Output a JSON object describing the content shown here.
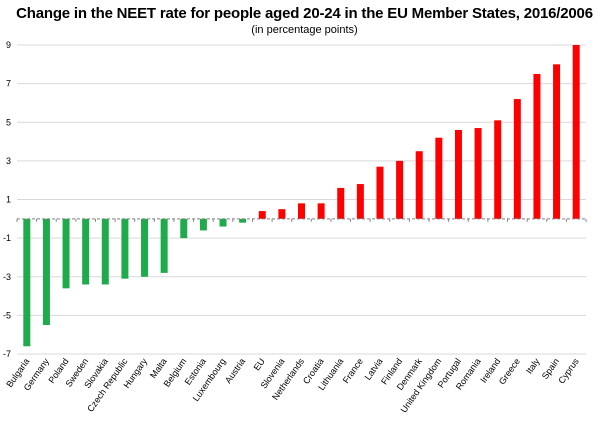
{
  "chart_data": {
    "type": "bar",
    "title": "Change in the NEET rate for people aged 20-24 in the EU Member States, 2016/2006",
    "subtitle": "(in percentage points)",
    "xlabel": "",
    "ylabel": "",
    "ylim": [
      -7,
      9
    ],
    "yticks": [
      -7,
      -5,
      -3,
      -1,
      1,
      3,
      5,
      7,
      9
    ],
    "grid": true,
    "colors": {
      "negative": "#1faa4b",
      "positive": "#ff0000"
    },
    "categories": [
      "Bulgaria",
      "Germany",
      "Poland",
      "Sweden",
      "Slovakia",
      "Czech Republic",
      "Hungary",
      "Malta",
      "Belgium",
      "Estonia",
      "Luxembourg",
      "Austria",
      "EU",
      "Slovenia",
      "Netherlands",
      "Croatia",
      "Lithuania",
      "France",
      "Latvia",
      "Finland",
      "Denmark",
      "United Kingdom",
      "Portugal",
      "Romania",
      "Ireland",
      "Greece",
      "Italy",
      "Spain",
      "Cyprus"
    ],
    "values": [
      -6.6,
      -5.5,
      -3.6,
      -3.4,
      -3.4,
      -3.1,
      -3.0,
      -2.8,
      -1.0,
      -0.6,
      -0.4,
      -0.2,
      0.4,
      0.5,
      0.8,
      0.8,
      1.6,
      1.8,
      2.7,
      3.0,
      3.5,
      4.2,
      4.6,
      4.7,
      5.1,
      6.2,
      7.5,
      8.0,
      9.0
    ]
  }
}
